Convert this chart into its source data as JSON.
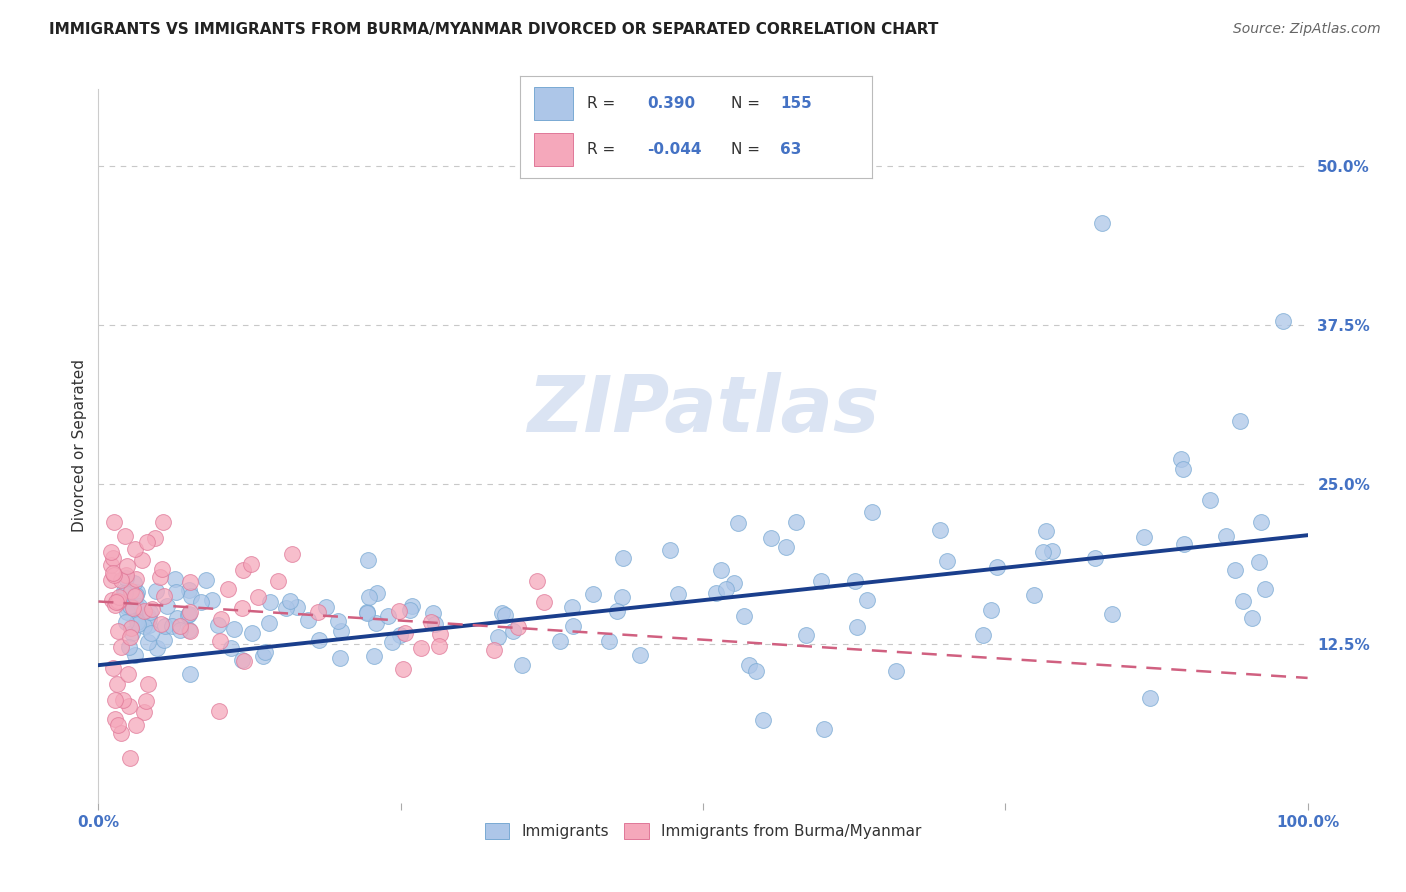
{
  "title": "IMMIGRANTS VS IMMIGRANTS FROM BURMA/MYANMAR DIVORCED OR SEPARATED CORRELATION CHART",
  "source": "Source: ZipAtlas.com",
  "ylabel": "Divorced or Separated",
  "xlim": [
    0.0,
    1.0
  ],
  "ylim": [
    0.0,
    0.56
  ],
  "ytick_positions": [
    0.125,
    0.25,
    0.375,
    0.5
  ],
  "ytick_labels": [
    "12.5%",
    "25.0%",
    "37.5%",
    "50.0%"
  ],
  "legend1_r": "0.390",
  "legend1_n": "155",
  "legend2_r": "-0.044",
  "legend2_n": "63",
  "blue_color": "#adc6e8",
  "blue_edge_color": "#7aaad4",
  "pink_color": "#f5a8bb",
  "pink_edge_color": "#e07898",
  "blue_line_color": "#1a3e8c",
  "pink_line_color": "#d06080",
  "title_fontsize": 11,
  "source_fontsize": 10,
  "axis_label_color": "#4472c4",
  "watermark_color": "#ccd9ee",
  "blue_trend_x0": 0.0,
  "blue_trend_y0": 0.108,
  "blue_trend_x1": 1.0,
  "blue_trend_y1": 0.21,
  "pink_trend_x0": 0.0,
  "pink_trend_y0": 0.158,
  "pink_trend_x1": 1.0,
  "pink_trend_y1": 0.098
}
